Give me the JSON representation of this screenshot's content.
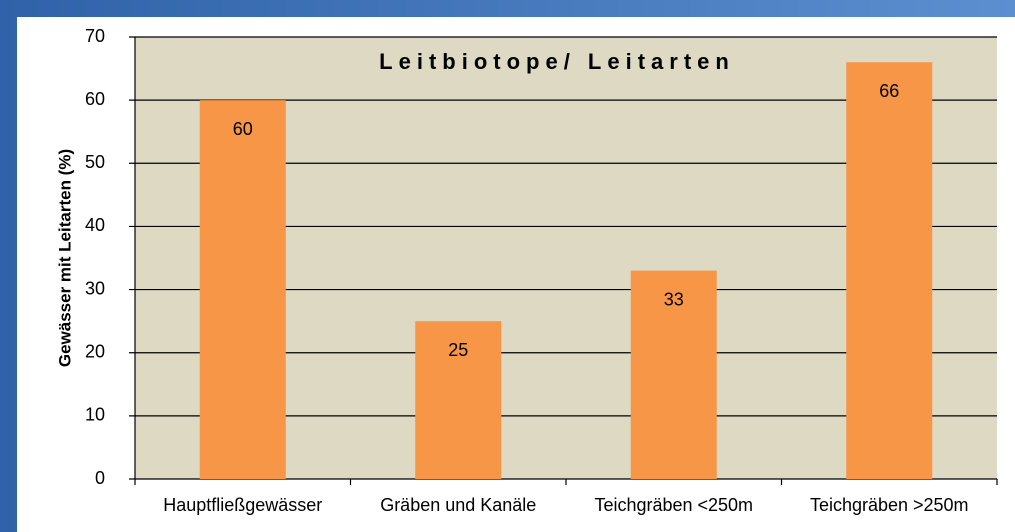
{
  "chart_data": {
    "type": "bar",
    "title": "Leitbiotope/ Leitarten",
    "y_label": "Gewässer mit Leitarten (%)",
    "categories": [
      "Hauptfließgewässer",
      "Gräben und Kanäle",
      "Teichgräben <250m",
      "Teichgräben >250m"
    ],
    "values": [
      60,
      25,
      33,
      66
    ],
    "color": "#f79646",
    "ylim": [
      0,
      70
    ],
    "yticks": [
      0,
      10,
      20,
      30,
      40,
      50,
      60,
      70
    ],
    "grid": true
  }
}
